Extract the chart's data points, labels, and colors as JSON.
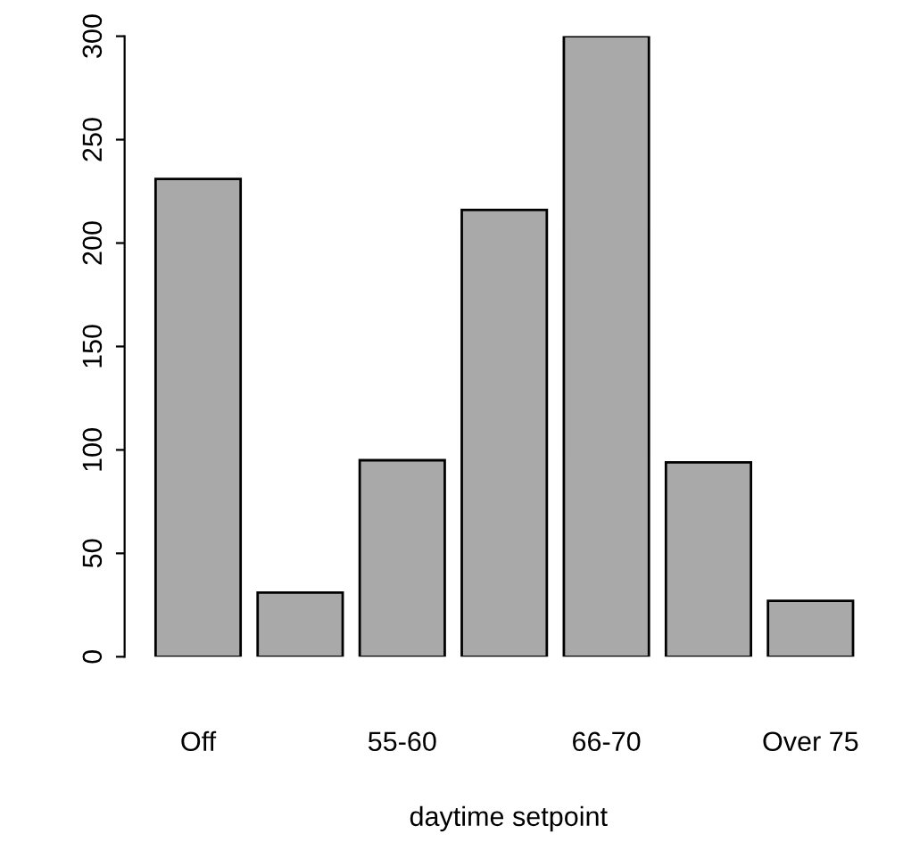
{
  "chart_data": {
    "type": "bar",
    "xlabel": "daytime setpoint",
    "categories": [
      "Off",
      null,
      "55-60",
      null,
      "66-70",
      null,
      "Over 75"
    ],
    "values": [
      231,
      31,
      95,
      216,
      300,
      94,
      27
    ],
    "color": "#a9a9a9",
    "ylim": [
      0,
      300
    ],
    "yticks": [
      0,
      50,
      100,
      150,
      200,
      250,
      300
    ],
    "grid": false,
    "legend": false
  }
}
